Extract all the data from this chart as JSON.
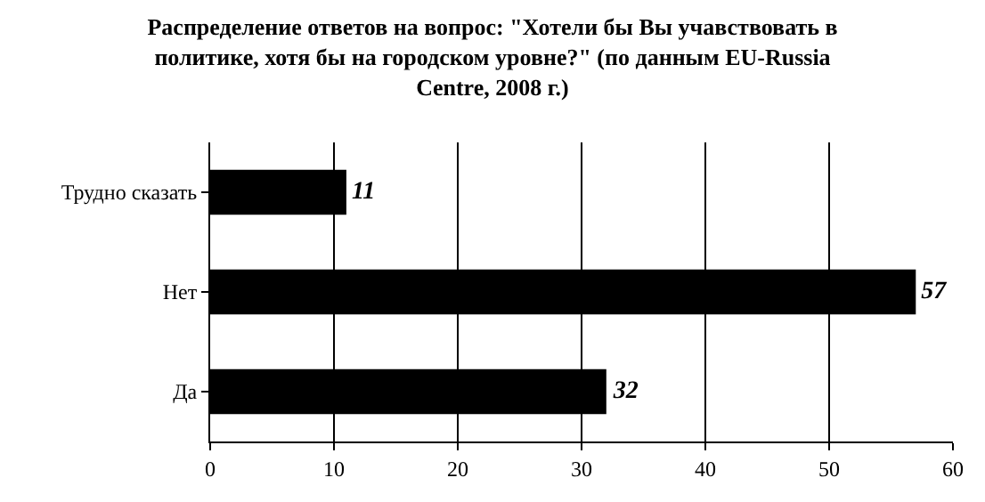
{
  "chart_data": {
    "type": "bar",
    "orientation": "horizontal",
    "title": "Распределение ответов на вопрос: \"Хотели бы Вы учавствовать в политике, хотя бы на городском уровне?\" (по данным EU-Russia Centre, 2008 г.)",
    "categories": [
      "Трудно сказать",
      "Нет",
      "Да"
    ],
    "values": [
      11,
      57,
      32
    ],
    "color": "#000000",
    "xlim": [
      0,
      60
    ],
    "xticks": [
      0,
      10,
      20,
      30,
      40,
      50,
      60
    ],
    "grid": "x",
    "data_labels": true
  }
}
